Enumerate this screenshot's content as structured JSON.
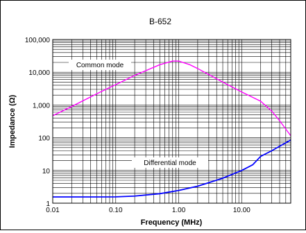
{
  "chart_data": {
    "type": "line",
    "title": "B-652",
    "xlabel": "Frequency (MHz)",
    "ylabel": "Impedance (Ω)",
    "xscale": "log",
    "yscale": "log",
    "xlim": [
      0.01,
      60
    ],
    "ylim": [
      1,
      100000
    ],
    "grid": true,
    "x_ticks": [
      0.01,
      0.1,
      1,
      10
    ],
    "x_tick_labels": [
      "0.01",
      "0.10",
      "1.00",
      "10.00"
    ],
    "y_ticks": [
      1,
      10,
      100,
      1000,
      10000,
      100000
    ],
    "y_tick_labels": [
      "1",
      "10",
      "100",
      "1,000",
      "10,000",
      "100,000"
    ],
    "series": [
      {
        "name": "Common mode",
        "color": "#ff00ff",
        "x": [
          0.01,
          0.02,
          0.05,
          0.1,
          0.2,
          0.5,
          0.8,
          1,
          1.5,
          2,
          3,
          5,
          10,
          20,
          30,
          40,
          60
        ],
        "y": [
          470,
          900,
          2200,
          4200,
          8000,
          17000,
          22000,
          22000,
          17000,
          13000,
          8500,
          5000,
          2500,
          1300,
          650,
          330,
          115
        ]
      },
      {
        "name": "Differential mode",
        "color": "#0000ff",
        "x": [
          0.01,
          0.02,
          0.05,
          0.1,
          0.2,
          0.5,
          1,
          2,
          5,
          10,
          15,
          20,
          30,
          40,
          60
        ],
        "y": [
          1.55,
          1.55,
          1.55,
          1.56,
          1.65,
          1.95,
          2.45,
          3.3,
          5.8,
          10,
          15,
          27,
          40,
          55,
          85
        ]
      }
    ]
  }
}
